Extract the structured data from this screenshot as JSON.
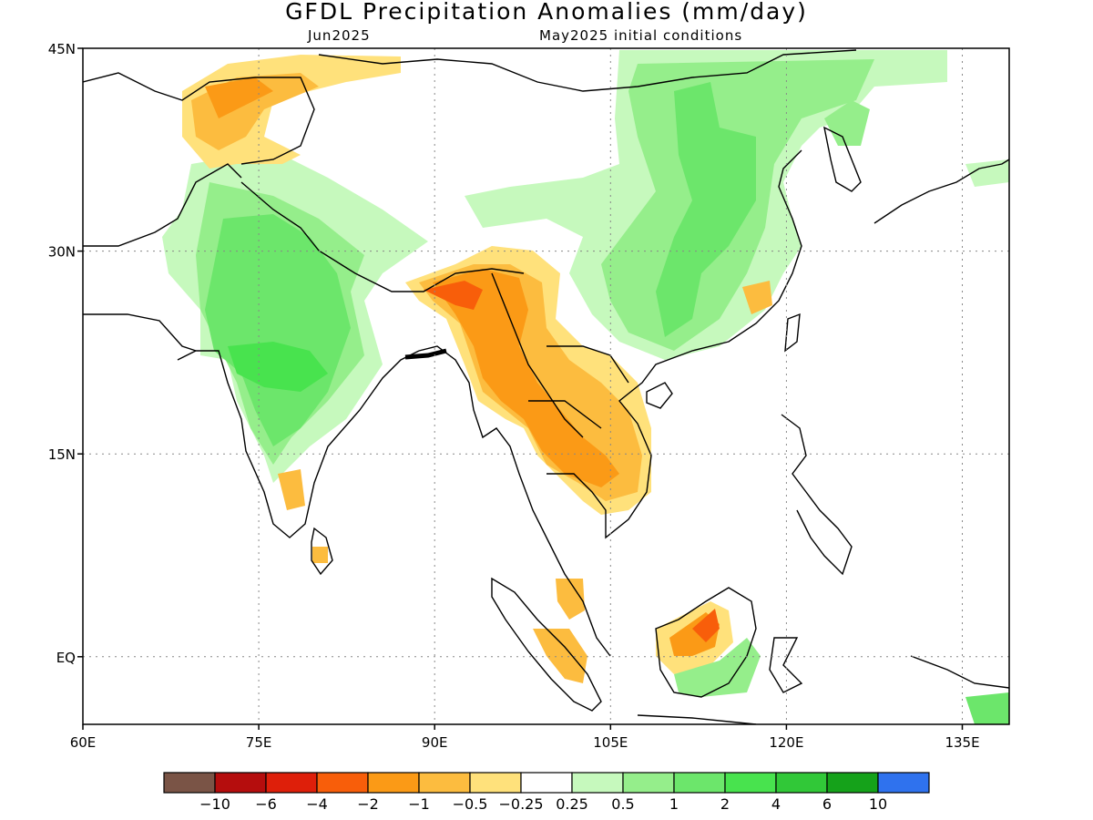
{
  "title": "GFDL Precipitation Anomalies (mm/day)",
  "subtitle_left": "Jun2025",
  "subtitle_right": "May2025 initial conditions",
  "axes": {
    "lon_ticks": [
      "60E",
      "75E",
      "90E",
      "105E",
      "120E",
      "135E"
    ],
    "lat_ticks": [
      "45N",
      "30N",
      "15N",
      "EQ"
    ],
    "lon_range": [
      60,
      139
    ],
    "lat_range": [
      -5,
      45
    ]
  },
  "colorbar": {
    "labels": [
      "-10",
      "-6",
      "-4",
      "-2",
      "-1",
      "-0.5",
      "-0.25",
      "0.25",
      "0.5",
      "1",
      "2",
      "4",
      "6",
      "10"
    ],
    "colors": [
      "#7a5446",
      "#b50d0d",
      "#de1f0a",
      "#f85e0a",
      "#fb9a16",
      "#fcbc3f",
      "#ffe17b",
      "#ffffff",
      "#c6f9bd",
      "#95ee8b",
      "#6ce66b",
      "#48e34e",
      "#31c838",
      "#15a21a",
      "#2f72ee"
    ]
  }
}
